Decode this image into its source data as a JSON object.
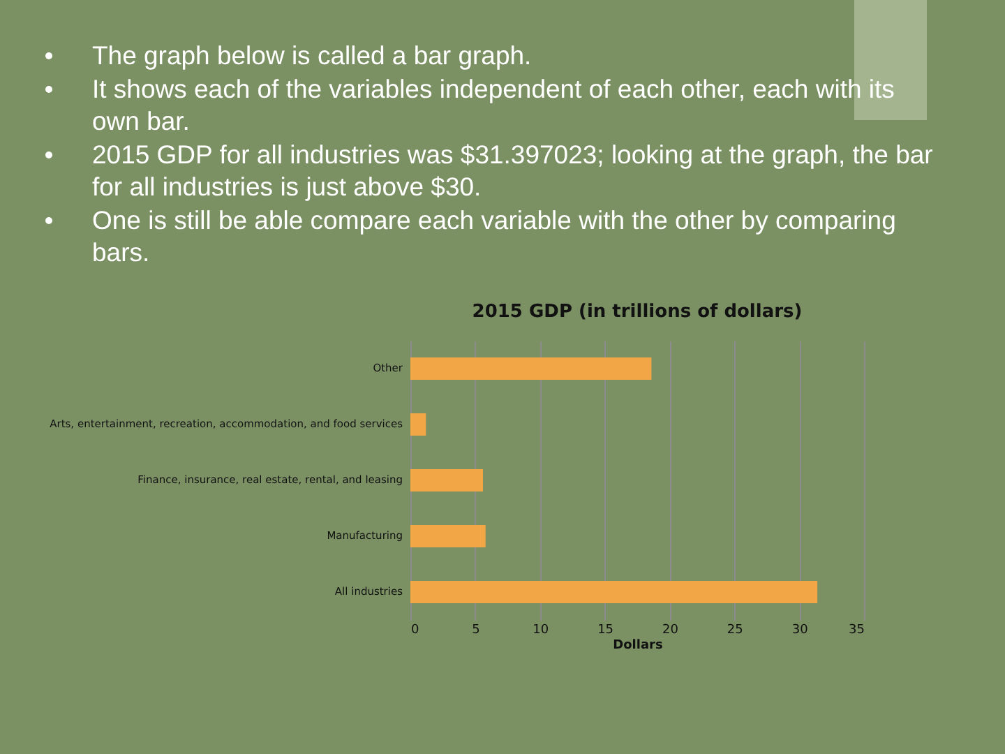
{
  "chart_data": {
    "type": "bar",
    "orientation": "horizontal",
    "title": "2015 GDP (in trillions of dollars)",
    "xlabel": "Dollars",
    "categories": [
      "Other",
      "Arts, entertainment, recreation, accommodation, and food services",
      "Finance, insurance, real estate, rental, and leasing",
      "Manufacturing",
      "All industries"
    ],
    "values": [
      18.6,
      1.2,
      5.6,
      5.8,
      31.4
    ],
    "color": "#f2a645",
    "xlim": [
      0,
      35
    ],
    "xticks": [
      0,
      5,
      10,
      15,
      20,
      25,
      30,
      35
    ],
    "grid": "x",
    "annotations": [
      "The graph below is called a bar graph.",
      "It shows each of the variables independent of each other, each with its own bar.",
      "2015 GDP for all industries was $31.397023; looking at the graph, the bar for all industries is just above $30.",
      "One is still be able compare each variable with the other by comparing bars."
    ]
  }
}
